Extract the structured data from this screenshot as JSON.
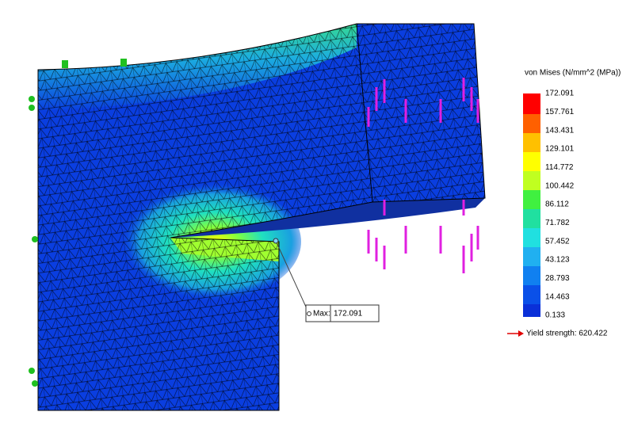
{
  "legend": {
    "title": "von Mises (N/mm^2 (MPa))",
    "ticks": [
      172.091,
      157.761,
      143.431,
      129.101,
      114.772,
      100.442,
      86.112,
      71.782,
      57.452,
      43.123,
      28.793,
      14.463,
      0.133
    ],
    "yield": "Yield strength: 620.422"
  },
  "probe": {
    "label": "Max:",
    "value": "172.091"
  }
}
